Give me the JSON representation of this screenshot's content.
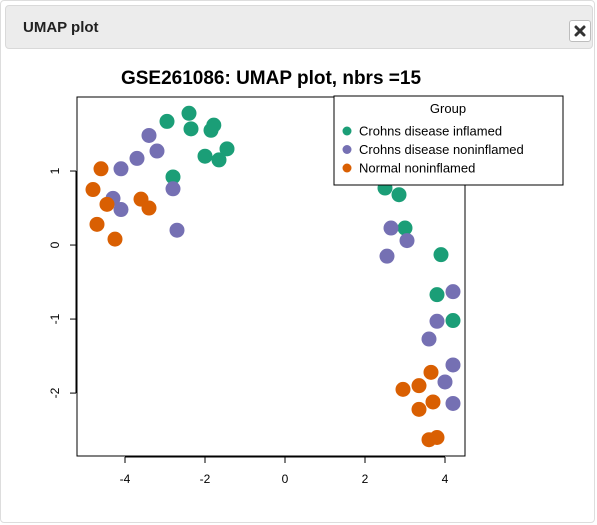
{
  "window": {
    "title": "UMAP plot",
    "close_icon": "close-x-icon"
  },
  "chart_data": {
    "type": "scatter",
    "title": "GSE261086: UMAP plot, nbrs =15",
    "xlabel": "",
    "ylabel": "",
    "xlim": [
      -5.2,
      4.5
    ],
    "ylim": [
      -2.85,
      2.0
    ],
    "x_ticks": [
      -4,
      -2,
      0,
      2,
      4
    ],
    "y_ticks": [
      -2,
      -1,
      0,
      1
    ],
    "x_tick_labels": [
      "-4",
      "-2",
      "0",
      "2",
      "4"
    ],
    "y_tick_labels": [
      "-2",
      "-1",
      "0",
      "1"
    ],
    "grid": false,
    "legend_position": "top-right",
    "legend_title": "Group",
    "series": [
      {
        "name": "Crohns disease inflamed",
        "color": "#1b9e77",
        "points": [
          [
            -2.95,
            1.67
          ],
          [
            -2.4,
            1.78
          ],
          [
            -2.35,
            1.57
          ],
          [
            -1.85,
            1.55
          ],
          [
            -1.78,
            1.62
          ],
          [
            -1.45,
            1.3
          ],
          [
            -2.0,
            1.2
          ],
          [
            -1.65,
            1.15
          ],
          [
            -2.8,
            0.92
          ],
          [
            2.5,
            0.77
          ],
          [
            2.85,
            0.68
          ],
          [
            3.0,
            0.23
          ],
          [
            3.9,
            -0.13
          ],
          [
            3.8,
            -0.67
          ],
          [
            4.2,
            -1.02
          ]
        ]
      },
      {
        "name": "Crohns disease noninflamed",
        "color": "#7570b3",
        "points": [
          [
            -3.4,
            1.48
          ],
          [
            -3.2,
            1.27
          ],
          [
            -3.7,
            1.17
          ],
          [
            -4.1,
            1.03
          ],
          [
            -2.8,
            0.76
          ],
          [
            -4.3,
            0.63
          ],
          [
            -4.1,
            0.48
          ],
          [
            -2.7,
            0.2
          ],
          [
            2.65,
            0.23
          ],
          [
            3.05,
            0.06
          ],
          [
            2.55,
            -0.15
          ],
          [
            4.2,
            -0.63
          ],
          [
            3.8,
            -1.03
          ],
          [
            3.6,
            -1.27
          ],
          [
            4.2,
            -1.62
          ],
          [
            4.0,
            -1.85
          ],
          [
            4.2,
            -2.14
          ]
        ]
      },
      {
        "name": "Normal noninflamed",
        "color": "#d95f02",
        "points": [
          [
            -4.6,
            1.03
          ],
          [
            -4.8,
            0.75
          ],
          [
            -4.45,
            0.55
          ],
          [
            -3.6,
            0.62
          ],
          [
            -3.4,
            0.5
          ],
          [
            -4.7,
            0.28
          ],
          [
            -4.25,
            0.08
          ],
          [
            3.65,
            -1.72
          ],
          [
            2.95,
            -1.95
          ],
          [
            3.35,
            -1.9
          ],
          [
            3.7,
            -2.12
          ],
          [
            3.35,
            -2.22
          ],
          [
            3.6,
            -2.63
          ],
          [
            3.8,
            -2.6
          ]
        ]
      }
    ]
  }
}
